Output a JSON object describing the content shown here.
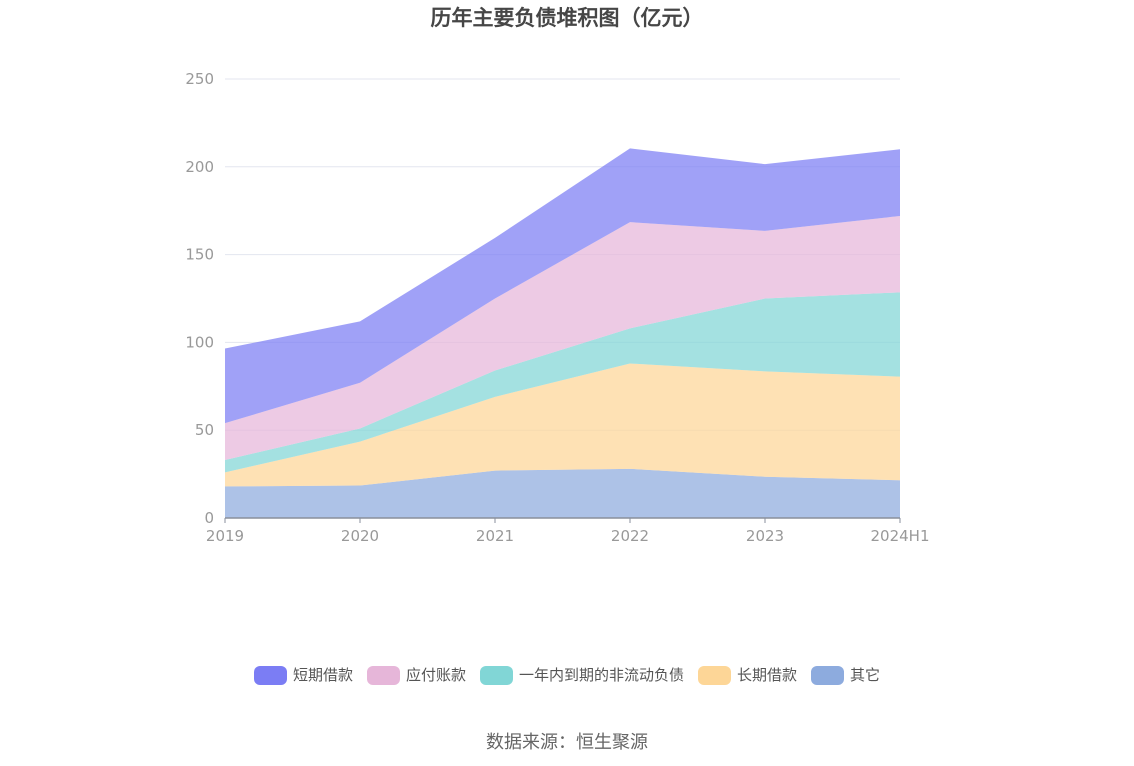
{
  "chart_data": {
    "type": "area",
    "stacked": true,
    "title": "历年主要负债堆积图（亿元）",
    "categories": [
      "2019",
      "2020",
      "2021",
      "2022",
      "2023",
      "2024H1"
    ],
    "ylim": [
      0,
      250
    ],
    "yticks": [
      0,
      50,
      100,
      150,
      200,
      250
    ],
    "grid": true,
    "legend_position": "bottom",
    "series": [
      {
        "name": "其它",
        "color": "#8dabde",
        "values": [
          18,
          18.5,
          27,
          28,
          23.5,
          21.5
        ]
      },
      {
        "name": "长期借款",
        "color": "#fdd697",
        "values": [
          8,
          25,
          42,
          60,
          60,
          59
        ]
      },
      {
        "name": "一年内到期的非流动负债",
        "color": "#81d6d6",
        "values": [
          7,
          7.5,
          15,
          20,
          41.5,
          48
        ]
      },
      {
        "name": "应付账款",
        "color": "#e6b6d9",
        "values": [
          21,
          26,
          41,
          60.5,
          38.5,
          43.5
        ]
      },
      {
        "name": "短期借款",
        "color": "#7b7df4",
        "values": [
          42.5,
          35,
          34.5,
          42,
          38,
          38
        ]
      }
    ]
  },
  "source": "数据来源：恒生聚源"
}
